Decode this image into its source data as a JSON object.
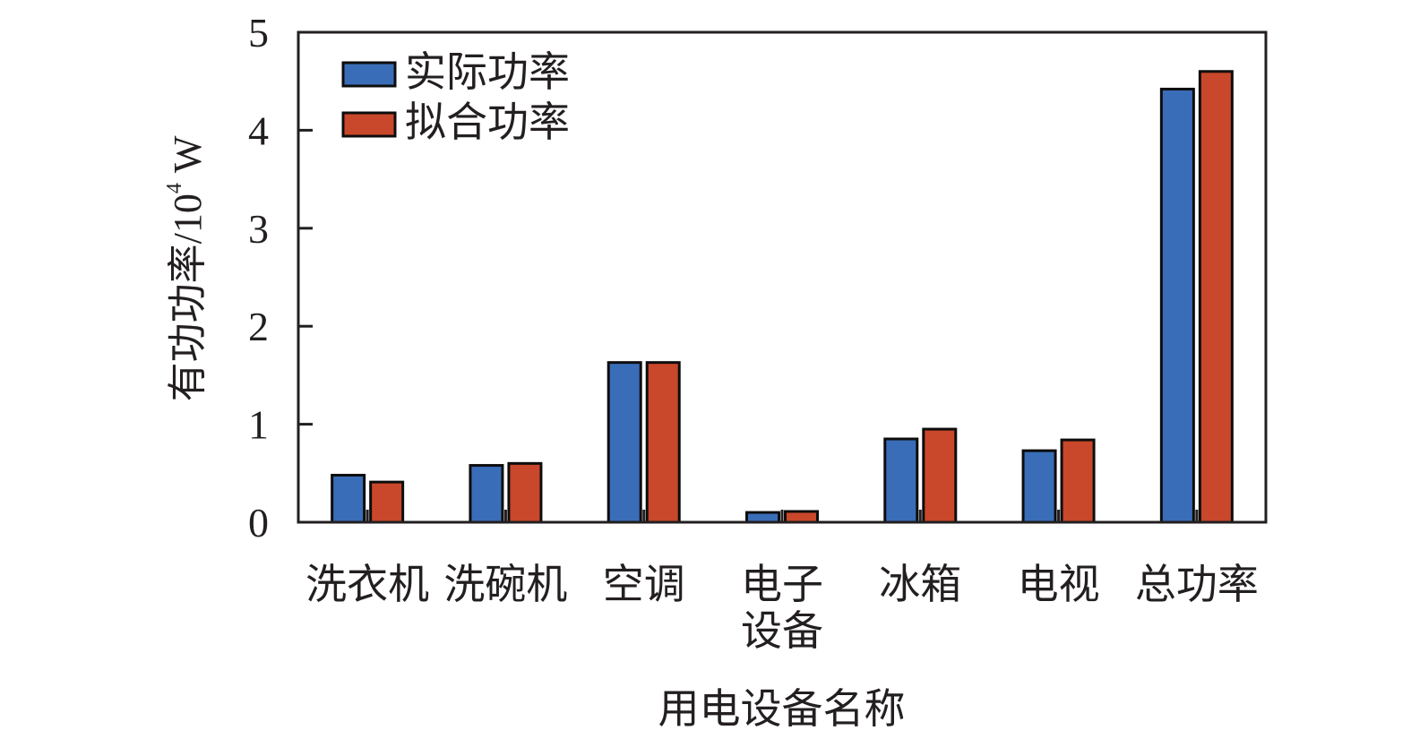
{
  "chart_data": {
    "type": "bar",
    "title": "",
    "xlabel": "用电设备名称",
    "ylabel": "有功功率/10^4 W",
    "ylabel_parts": {
      "text": "有功功率/10",
      "exp": "4",
      "unit": " W"
    },
    "ylim": [
      0,
      5
    ],
    "yticks": [
      0,
      1,
      2,
      3,
      4,
      5
    ],
    "grid": false,
    "legend_position": "upper-left",
    "categories": [
      "洗衣机",
      "洗碗机",
      "空调",
      "电子设备",
      "冰箱",
      "电视",
      "总功率"
    ],
    "category_lines": [
      [
        "洗衣机"
      ],
      [
        "洗碗机"
      ],
      [
        "空调"
      ],
      [
        "电子",
        "设备"
      ],
      [
        "冰箱"
      ],
      [
        "电视"
      ],
      [
        "总功率"
      ]
    ],
    "series": [
      {
        "name": "实际功率",
        "color": "#3A6DB8",
        "values": [
          0.48,
          0.58,
          1.63,
          0.1,
          0.85,
          0.73,
          4.42
        ]
      },
      {
        "name": "拟合功率",
        "color": "#C9472A",
        "values": [
          0.41,
          0.6,
          1.63,
          0.11,
          0.95,
          0.84,
          4.6
        ]
      }
    ]
  },
  "colors": {
    "axis": "#231f20",
    "bar_outline": "#0d0d0d"
  }
}
